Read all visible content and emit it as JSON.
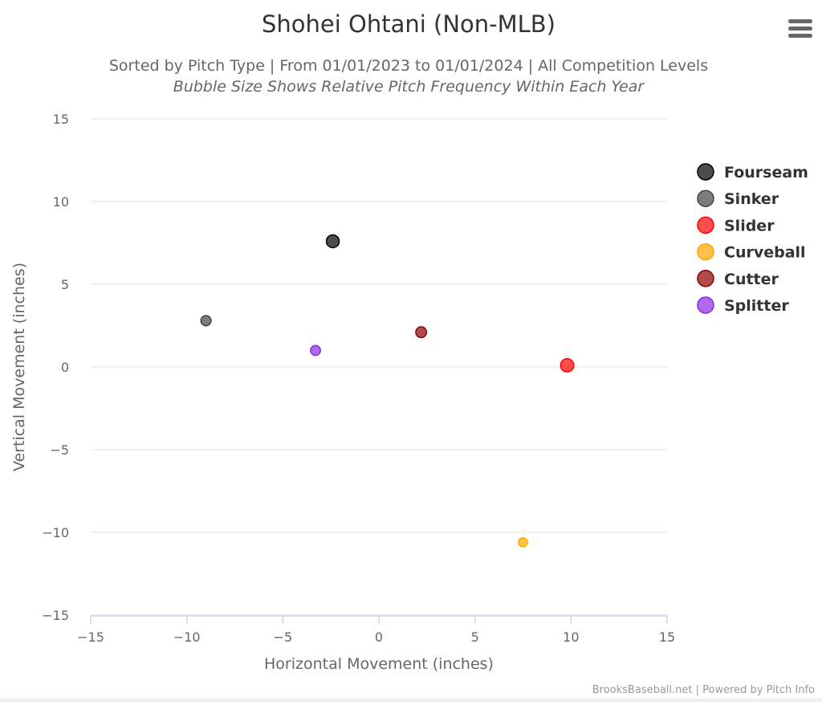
{
  "chart_data": {
    "type": "scatter",
    "title": "Shohei Ohtani (Non-MLB)",
    "subtitle": "Sorted by Pitch Type | From 01/01/2023 to 01/01/2024 | All Competition Levels",
    "subtitle2": "Bubble Size Shows Relative Pitch Frequency Within Each Year",
    "xlabel": "Horizontal Movement (inches)",
    "ylabel": "Vertical Movement (inches)",
    "xlim": [
      -15,
      15
    ],
    "ylim": [
      -15,
      15
    ],
    "xticks": [
      -15,
      -10,
      -5,
      0,
      5,
      10,
      15
    ],
    "yticks": [
      -15,
      -10,
      -5,
      0,
      5,
      10,
      15
    ],
    "grid": "horizontal",
    "legend_position": "right",
    "credits": "BrooksBaseball.net | Powered by Pitch Info",
    "series": [
      {
        "name": "Fourseam",
        "color": "#000000",
        "x": -2.4,
        "y": 7.6,
        "relative_frequency": 1.0
      },
      {
        "name": "Sinker",
        "color": "#444444",
        "x": -9.0,
        "y": 2.8,
        "relative_frequency": 0.4
      },
      {
        "name": "Slider",
        "color": "#ff0000",
        "x": 9.8,
        "y": 0.1,
        "relative_frequency": 1.1
      },
      {
        "name": "Curveball",
        "color": "#ffa500",
        "x": 7.5,
        "y": -10.6,
        "relative_frequency": 0.2
      },
      {
        "name": "Cutter",
        "color": "#8b0000",
        "x": 2.2,
        "y": 2.1,
        "relative_frequency": 0.5
      },
      {
        "name": "Splitter",
        "color": "#8a2be2",
        "x": -3.3,
        "y": 1.0,
        "relative_frequency": 0.35
      }
    ]
  }
}
